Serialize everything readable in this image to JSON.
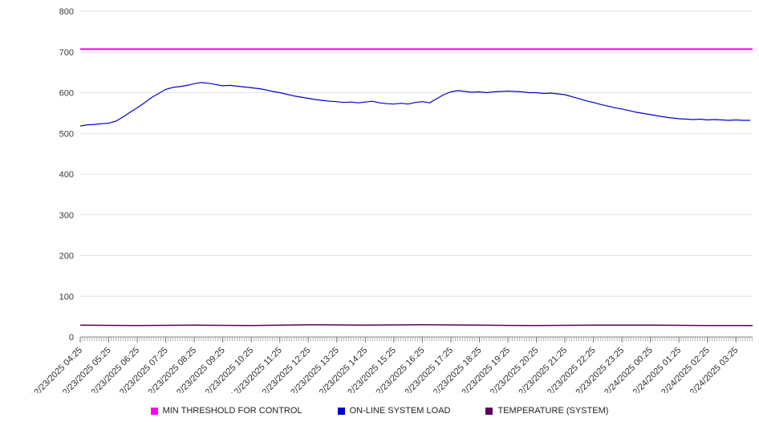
{
  "chart_data": {
    "type": "line",
    "title": "",
    "xlabel": "",
    "ylabel": "",
    "ylim": [
      0,
      800
    ],
    "yticks": [
      0,
      100,
      200,
      300,
      400,
      500,
      600,
      700,
      800
    ],
    "x_range": [
      0,
      23.583
    ],
    "minor_tick_hours": 0.0833,
    "grid": true,
    "legend_position": "bottom",
    "x_labels": [
      "12/23/2025 04:25",
      "12/23/2025 05:25",
      "12/23/2025 06:25",
      "12/23/2025 07:25",
      "12/23/2025 08:25",
      "12/23/2025 09:25",
      "12/23/2025 10:25",
      "12/23/2025 11:25",
      "12/23/2025 12:25",
      "12/23/2025 13:25",
      "12/23/2025 14:25",
      "12/23/2025 15:25",
      "12/23/2025 16:25",
      "12/23/2025 17:25",
      "12/23/2025 18:25",
      "12/23/2025 19:25",
      "12/23/2025 20:25",
      "12/23/2025 21:25",
      "12/23/2025 22:25",
      "12/23/2025 23:25",
      "12/24/2025 00:25",
      "12/24/2025 01:25",
      "12/24/2025 02:25",
      "12/24/2025 03:25"
    ],
    "series": [
      {
        "name": "MIN THRESHOLD FOR CONTROL",
        "color": "#ff00ff",
        "width": 2,
        "x": [
          0,
          23.583
        ],
        "values": [
          707,
          707
        ]
      },
      {
        "name": "ON-LINE SYSTEM LOAD",
        "color": "#0000cc",
        "width": 1.2,
        "x_start": 0,
        "x_step": 0.25,
        "values": [
          518,
          521,
          522,
          524,
          525,
          530,
          540,
          552,
          563,
          575,
          588,
          598,
          608,
          613,
          615,
          618,
          622,
          625,
          623,
          620,
          617,
          618,
          616,
          614,
          612,
          610,
          607,
          603,
          600,
          596,
          592,
          589,
          586,
          583,
          581,
          579,
          578,
          576,
          577,
          575,
          577,
          579,
          575,
          573,
          572,
          574,
          572,
          576,
          578,
          575,
          585,
          595,
          602,
          605,
          603,
          601,
          602,
          600,
          602,
          603,
          604,
          603,
          602,
          600,
          600,
          598,
          599,
          597,
          595,
          590,
          585,
          580,
          576,
          571,
          567,
          563,
          560,
          556,
          552,
          549,
          546,
          543,
          540,
          538,
          536,
          535,
          534,
          535,
          533,
          534,
          533,
          532,
          533,
          532,
          532
        ]
      },
      {
        "name": "TEMPERATURE (SYSTEM)",
        "color": "#5c005c",
        "width": 1.5,
        "x": [
          0,
          2,
          4,
          6,
          8,
          10,
          12,
          14,
          16,
          18,
          20,
          22,
          23.583
        ],
        "values": [
          29,
          28,
          29,
          28,
          30,
          29,
          30,
          29,
          28,
          29,
          29,
          28,
          28
        ]
      }
    ]
  }
}
